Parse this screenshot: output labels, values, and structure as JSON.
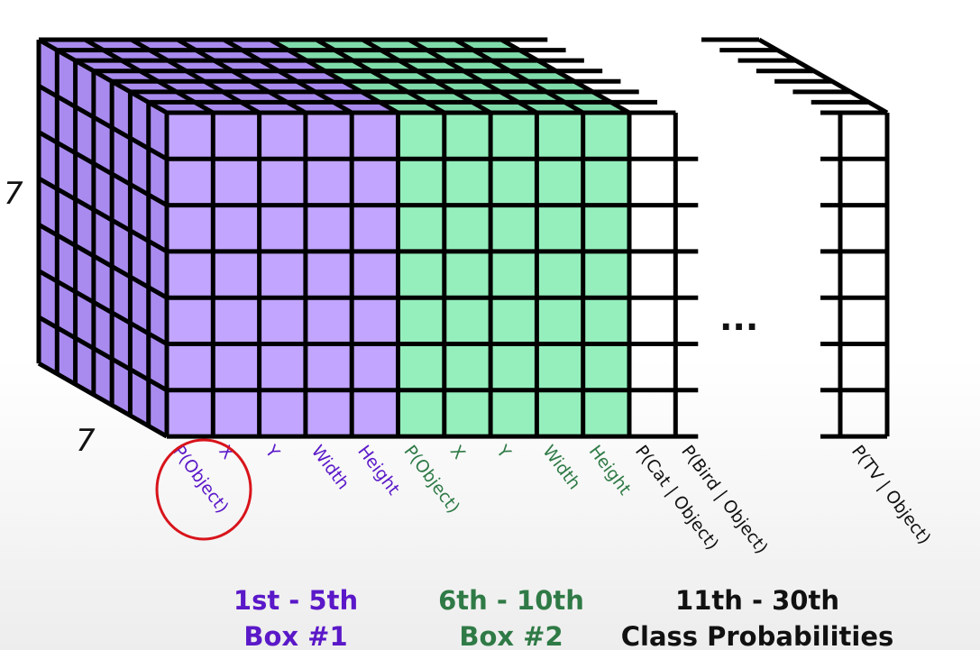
{
  "dimensions": {
    "height_label": "7",
    "width_label": "7"
  },
  "ellipsis": "...",
  "colors": {
    "box1": "#c1a5ff",
    "box1_dark": "#a98bef",
    "box2": "#95efbd",
    "box2_dark": "#7fdcaa",
    "box1_text": "#5a18c8",
    "box2_text": "#2f7a46",
    "class_text": "#111111",
    "highlight": "#d8141b"
  },
  "columns": [
    {
      "label": "P(Object)",
      "group": "box1"
    },
    {
      "label": "X",
      "group": "box1"
    },
    {
      "label": "Y",
      "group": "box1"
    },
    {
      "label": "Width",
      "group": "box1"
    },
    {
      "label": "Height",
      "group": "box1"
    },
    {
      "label": "P(Object)",
      "group": "box2"
    },
    {
      "label": "X",
      "group": "box2"
    },
    {
      "label": "Y",
      "group": "box2"
    },
    {
      "label": "Width",
      "group": "box2"
    },
    {
      "label": "Height",
      "group": "box2"
    },
    {
      "label": "P(Cat | Object)",
      "group": "classes"
    },
    {
      "label": "P(Bird | Object)",
      "group": "classes"
    },
    {
      "label": "P(TV | Object)",
      "group": "classes"
    }
  ],
  "groups": [
    {
      "line1": "1st - 5th",
      "line2": "Box #1",
      "color_key": "box1_text"
    },
    {
      "line1": "6th - 10th",
      "line2": "Box #2",
      "color_key": "box2_text"
    },
    {
      "line1": "11th - 30th",
      "line2": "Class Probabilities",
      "color_key": "class_text"
    }
  ]
}
